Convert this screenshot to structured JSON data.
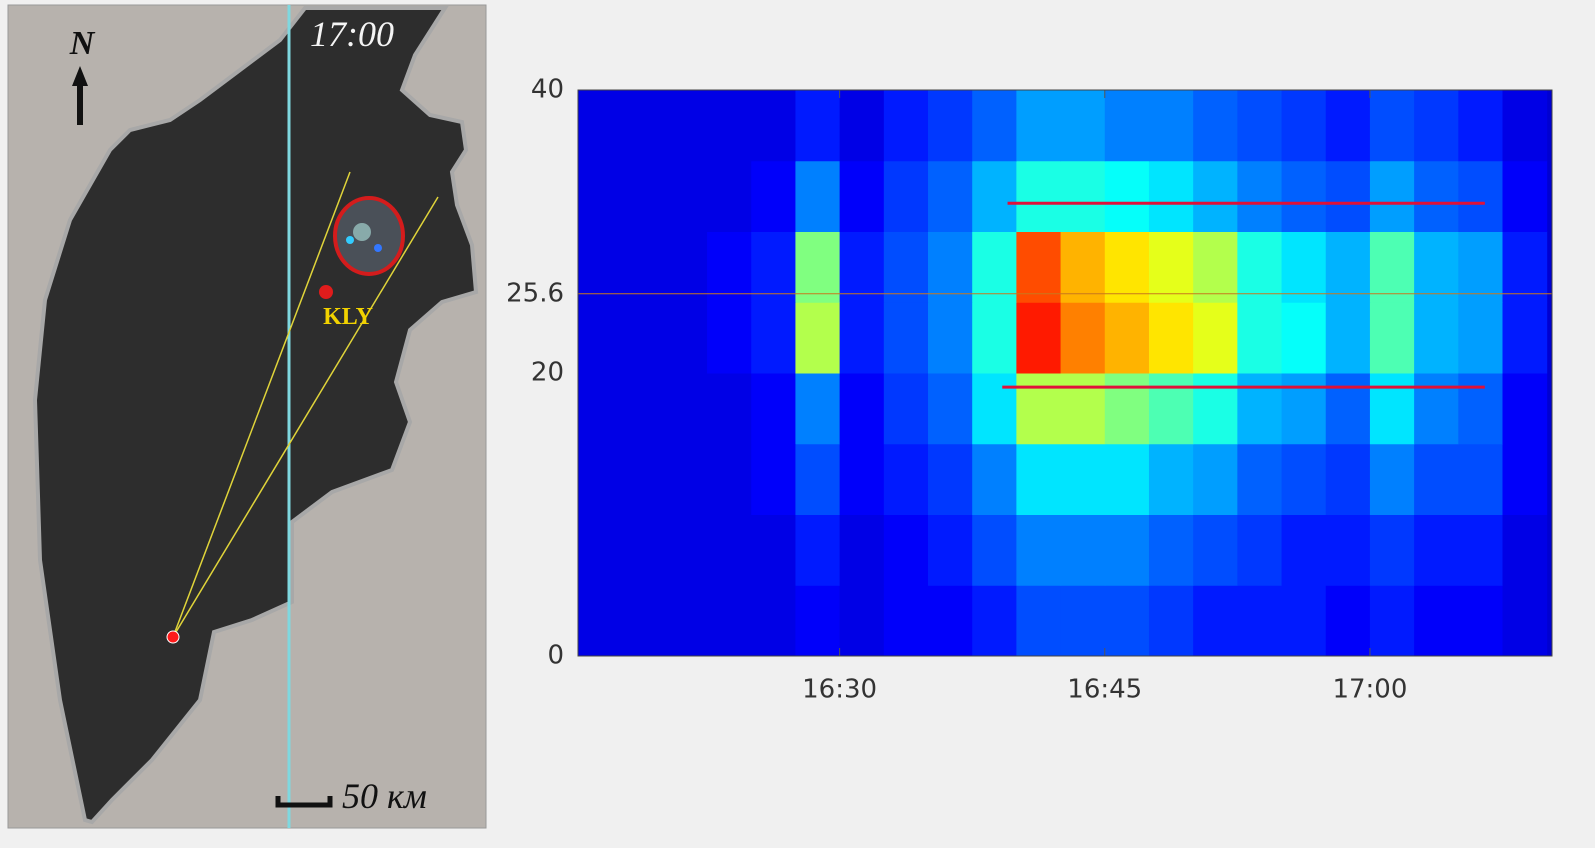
{
  "map": {
    "north": "N",
    "time": "17:00",
    "station": "KLY",
    "scale": "50 км"
  },
  "chart_data": {
    "type": "heatmap",
    "xlim": [
      975.2,
      1030.3
    ],
    "ylim": [
      0,
      40
    ],
    "xticks": [
      {
        "value": 990,
        "label": "16:30"
      },
      {
        "value": 1005,
        "label": "16:45"
      },
      {
        "value": 1020,
        "label": "17:00"
      }
    ],
    "yticks": [
      0,
      20,
      25.6,
      40
    ],
    "hline": 25.6,
    "hline_color": "#c8781e",
    "lines": [
      {
        "y": 32,
        "x": [
          999.5,
          1026.5
        ]
      },
      {
        "y": 19,
        "x": [
          999.2,
          1026.5
        ]
      }
    ],
    "line_color": "#e0103a",
    "x_bins": [
      975,
      977.5,
      980,
      982.5,
      985,
      987.5,
      990,
      992.5,
      995,
      997.5,
      1000,
      1002.5,
      1005,
      1007.5,
      1010,
      1012.5,
      1015,
      1017.5,
      1020,
      1022.5,
      1025,
      1027.5,
      1030
    ],
    "y_bins": [
      0,
      5,
      10,
      15,
      20,
      25,
      30,
      35,
      40
    ],
    "z": [
      [
        0.1,
        0.1,
        0.1,
        0.1,
        0.1,
        0.12,
        0.1,
        0.12,
        0.12,
        0.15,
        0.2,
        0.2,
        0.2,
        0.18,
        0.15,
        0.15,
        0.15,
        0.12,
        0.15,
        0.12,
        0.12,
        0.1
      ],
      [
        0.1,
        0.1,
        0.1,
        0.1,
        0.1,
        0.15,
        0.1,
        0.12,
        0.15,
        0.2,
        0.25,
        0.25,
        0.25,
        0.22,
        0.2,
        0.18,
        0.15,
        0.15,
        0.18,
        0.15,
        0.15,
        0.1
      ],
      [
        0.1,
        0.1,
        0.1,
        0.1,
        0.12,
        0.2,
        0.12,
        0.15,
        0.18,
        0.25,
        0.35,
        0.35,
        0.35,
        0.3,
        0.28,
        0.22,
        0.2,
        0.18,
        0.25,
        0.2,
        0.2,
        0.12
      ],
      [
        0.1,
        0.1,
        0.1,
        0.1,
        0.12,
        0.25,
        0.12,
        0.18,
        0.22,
        0.35,
        0.55,
        0.55,
        0.5,
        0.45,
        0.4,
        0.3,
        0.28,
        0.22,
        0.35,
        0.25,
        0.22,
        0.12
      ],
      [
        0.1,
        0.1,
        0.1,
        0.12,
        0.15,
        0.55,
        0.15,
        0.2,
        0.25,
        0.4,
        0.85,
        0.75,
        0.7,
        0.65,
        0.6,
        0.4,
        0.38,
        0.3,
        0.45,
        0.3,
        0.28,
        0.15
      ],
      [
        0.1,
        0.1,
        0.1,
        0.12,
        0.15,
        0.5,
        0.15,
        0.2,
        0.25,
        0.4,
        0.8,
        0.7,
        0.65,
        0.6,
        0.55,
        0.4,
        0.35,
        0.3,
        0.45,
        0.3,
        0.28,
        0.15
      ],
      [
        0.1,
        0.1,
        0.1,
        0.1,
        0.12,
        0.25,
        0.12,
        0.18,
        0.22,
        0.3,
        0.4,
        0.4,
        0.38,
        0.35,
        0.3,
        0.25,
        0.22,
        0.2,
        0.28,
        0.22,
        0.2,
        0.12
      ],
      [
        0.1,
        0.1,
        0.1,
        0.1,
        0.1,
        0.15,
        0.1,
        0.15,
        0.18,
        0.22,
        0.28,
        0.28,
        0.25,
        0.25,
        0.22,
        0.2,
        0.18,
        0.15,
        0.2,
        0.18,
        0.15,
        0.1
      ]
    ]
  }
}
